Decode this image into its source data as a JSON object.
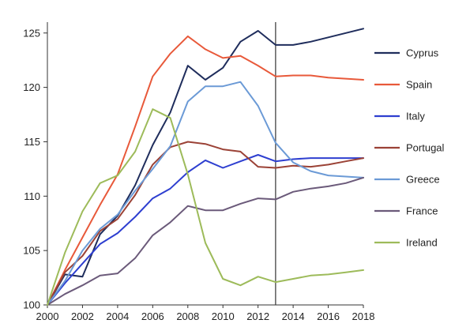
{
  "chart_data": {
    "type": "line",
    "title": "",
    "xlabel": "",
    "ylabel": "",
    "xlim": [
      2000,
      2018
    ],
    "ylim": [
      100,
      126
    ],
    "x_ticks": [
      2000,
      2002,
      2004,
      2006,
      2008,
      2010,
      2012,
      2014,
      2016,
      2018
    ],
    "y_ticks": [
      100,
      105,
      110,
      115,
      120,
      125
    ],
    "x_tick_labels": [
      "2000",
      "2002",
      "2004",
      "2006",
      "2008",
      "2010",
      "2012",
      "2014",
      "2016",
      "2018"
    ],
    "y_tick_labels": [
      "100",
      "105",
      "110",
      "115",
      "120",
      "125"
    ],
    "grid": false,
    "legend_position": "right",
    "vertical_marker_x": 2013,
    "x": [
      2000,
      2001,
      2002,
      2003,
      2004,
      2005,
      2006,
      2007,
      2008,
      2009,
      2010,
      2011,
      2012,
      2013,
      2014,
      2015,
      2016,
      2017,
      2018
    ],
    "series": [
      {
        "name": "Cyprus",
        "color": "#1f2d5c",
        "values": [
          100,
          102.8,
          102.6,
          106.5,
          108.2,
          111,
          114.7,
          117.7,
          122,
          120.7,
          121.8,
          124.2,
          125.2,
          123.9,
          123.9,
          124.2,
          124.6,
          125,
          125.4
        ]
      },
      {
        "name": "Spain",
        "color": "#e8593a",
        "values": [
          100,
          103.2,
          106.2,
          109.2,
          112,
          116.4,
          121,
          123.1,
          124.7,
          123.5,
          122.7,
          122.9,
          122,
          121,
          121.1,
          121.1,
          120.9,
          120.8,
          120.7
        ]
      },
      {
        "name": "Italy",
        "color": "#2e3fd0",
        "values": [
          100,
          102,
          103.8,
          105.6,
          106.6,
          108.1,
          109.8,
          110.7,
          112.2,
          113.3,
          112.6,
          113.2,
          113.8,
          113.2,
          113.4,
          113.5,
          113.5,
          113.5,
          113.5
        ]
      },
      {
        "name": "Portugal",
        "color": "#9b4236",
        "values": [
          100,
          103,
          104.5,
          106.8,
          107.9,
          110.1,
          112.9,
          114.5,
          115,
          114.8,
          114.3,
          114.1,
          112.7,
          112.6,
          112.8,
          112.7,
          112.9,
          113.2,
          113.5
        ]
      },
      {
        "name": "Greece",
        "color": "#6b9ad6",
        "values": [
          100,
          102.2,
          105,
          107,
          108.3,
          110.5,
          112.5,
          114.6,
          118.7,
          120.1,
          120.1,
          120.5,
          118.3,
          114.9,
          113.1,
          112.3,
          111.9,
          111.8,
          111.7
        ]
      },
      {
        "name": "France",
        "color": "#6b5a7a",
        "values": [
          100,
          101,
          101.8,
          102.7,
          102.9,
          104.3,
          106.4,
          107.6,
          109.1,
          108.7,
          108.7,
          109.3,
          109.8,
          109.7,
          110.4,
          110.7,
          110.9,
          111.2,
          111.7
        ]
      },
      {
        "name": "Ireland",
        "color": "#9dbb5a",
        "values": [
          100,
          104.8,
          108.6,
          111.2,
          111.9,
          114.1,
          118,
          117.2,
          112,
          105.7,
          102.4,
          101.8,
          102.6,
          102.1,
          102.4,
          102.7,
          102.8,
          103,
          103.2
        ]
      }
    ]
  }
}
